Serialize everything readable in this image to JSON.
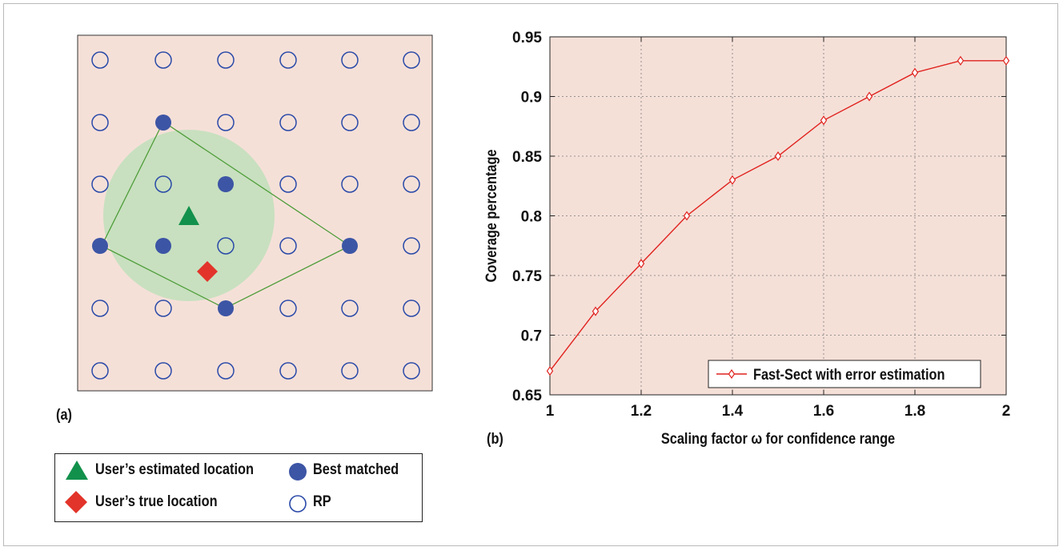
{
  "panel_a": {
    "label": "(a)",
    "legend": {
      "estimated": "User’s estimated location",
      "true_loc": "User’s true location",
      "best": "Best matched",
      "rp": "RP"
    },
    "colors": {
      "background": "#f5e0d8",
      "rp_stroke": "#2a4aa8",
      "best_fill": "#3c55a5",
      "circle_fill": "#c8e0bf",
      "polygon": "#4f9d3a",
      "estimated": "#12914c",
      "true": "#e2342a"
    }
  },
  "chart_data": {
    "type": "line",
    "panel_label": "(b)",
    "x": [
      1,
      1.1,
      1.2,
      1.3,
      1.4,
      1.5,
      1.6,
      1.7,
      1.8,
      1.9,
      2
    ],
    "series": [
      {
        "name": "Fast-Sect with error estimation",
        "values": [
          0.67,
          0.72,
          0.76,
          0.8,
          0.83,
          0.85,
          0.88,
          0.9,
          0.92,
          0.93,
          0.93
        ],
        "color": "#e0221e",
        "marker": "diamond"
      }
    ],
    "xlabel": "Scaling factor ω for confidence range",
    "ylabel": "Coverage percentage",
    "xlim": [
      1,
      2
    ],
    "ylim": [
      0.65,
      0.95
    ],
    "xticks": [
      "1",
      "1.2",
      "1.4",
      "1.6",
      "1.8",
      "2"
    ],
    "yticks": [
      "0.65",
      "0.7",
      "0.75",
      "0.8",
      "0.85",
      "0.9",
      "0.95"
    ],
    "grid": true,
    "legend_position": "bottom-right",
    "background": "#f5e0d8"
  }
}
